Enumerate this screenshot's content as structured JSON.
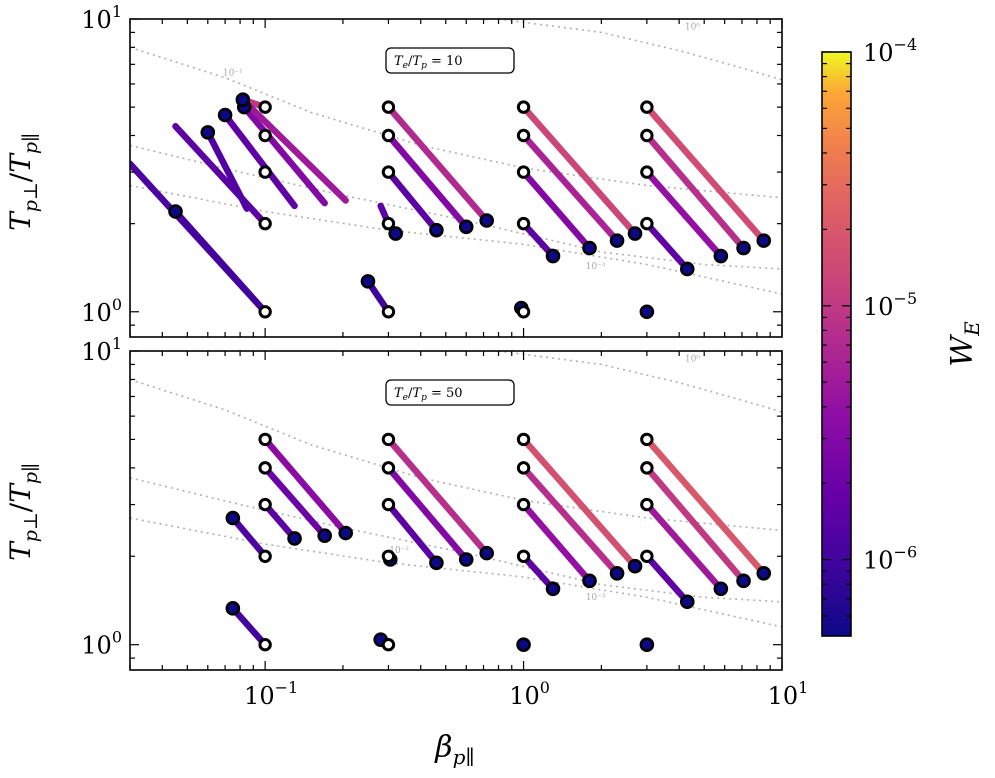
{
  "figure": {
    "xlabel_main": "β",
    "xlabel_sub": "p∥",
    "ylabel_main": "T",
    "ylabel_sub1": "p⊥",
    "ylabel_sep": "/",
    "ylabel_sub2": "p∥",
    "colorbar_label_main": "W",
    "colorbar_label_sub": "E"
  },
  "colors": {
    "low": "#0d0887",
    "mid": "#9c179e",
    "high": "#ed7953",
    "top": "#f0f921",
    "contour": "#b0b0b0"
  },
  "chart_data": {
    "type": "scatter",
    "x_scale": "log",
    "y_scale": "log",
    "xlim": [
      0.03,
      10
    ],
    "ylim": [
      0.82,
      10
    ],
    "x_ticks": [
      {
        "value": 0.1,
        "base": "10",
        "exp": "−1"
      },
      {
        "value": 1,
        "base": "10",
        "exp": "0"
      },
      {
        "value": 10,
        "base": "10",
        "exp": "1"
      }
    ],
    "y_ticks": [
      {
        "value": 1,
        "base": "10",
        "exp": "0"
      },
      {
        "value": 10,
        "base": "10",
        "exp": "1"
      }
    ],
    "colorbar": {
      "scale": "log",
      "range": [
        5e-07,
        0.0001
      ],
      "ticks": [
        {
          "value": 0.0001,
          "base": "10",
          "exp": "−4"
        },
        {
          "value": 1e-05,
          "base": "10",
          "exp": "−5"
        },
        {
          "value": 1e-06,
          "base": "10",
          "exp": "−6"
        }
      ]
    },
    "panels": [
      {
        "name": "Te/Tp = 10",
        "label_main": "T",
        "label_sub1": "e",
        "label_sep": "/",
        "label_main2": "T",
        "label_sub2": "p",
        "label_value": " = 10",
        "contours": [
          {
            "label": "10⁰",
            "points": [
              [
                0.8,
                10
              ],
              [
                2,
                9
              ],
              [
                4,
                7.8
              ],
              [
                7,
                6.8
              ],
              [
                10,
                6.2
              ]
            ],
            "label_at": [
              4.5,
              9.2
            ]
          },
          {
            "label": "10⁻¹",
            "points": [
              [
                0.03,
                8
              ],
              [
                0.07,
                6.3
              ],
              [
                0.15,
                4.8
              ],
              [
                0.4,
                3.7
              ],
              [
                1,
                3.1
              ],
              [
                3,
                2.7
              ],
              [
                10,
                2.45
              ]
            ],
            "label_at": [
              0.075,
              6.4
            ]
          },
          {
            "label": "10⁻³",
            "points": [
              [
                0.03,
                3.7
              ],
              [
                0.08,
                3
              ],
              [
                0.2,
                2.5
              ],
              [
                0.6,
                2.05
              ],
              [
                2,
                1.6
              ],
              [
                5,
                1.45
              ],
              [
                10,
                1.4
              ]
            ],
            "label_at": [
              1.9,
              1.4
            ]
          },
          {
            "label": "",
            "points": [
              [
                0.03,
                2.7
              ],
              [
                0.1,
                2.2
              ],
              [
                0.3,
                1.9
              ],
              [
                1,
                1.7
              ],
              [
                3,
                1.45
              ],
              [
                10,
                1.15
              ]
            ],
            "label_at": null
          }
        ],
        "trajectories": [
          {
            "x0": 0.1,
            "y0": 1.0,
            "x1": 0.03,
            "y1": 3.2,
            "w": 1.2e-06,
            "ws": 3e-06,
            "end_marker": false
          },
          {
            "x0": 0.1,
            "y0": 2.0,
            "x1": 0.045,
            "y1": 4.3,
            "w": 1.5e-06,
            "end_marker": false
          },
          {
            "x0": 0.1,
            "y0": 5.0,
            "x1": 0.082,
            "y1": 5.3,
            "w": 1e-05,
            "end_marker": false
          },
          {
            "x0": 0.1,
            "y0": 1.0,
            "x1": 0.045,
            "y1": 2.2,
            "w": 1e-06,
            "end_marker": true,
            "show_start": false
          },
          {
            "x0": 0.085,
            "y0": 2.25,
            "x1": 0.06,
            "y1": 4.1,
            "w": 1.3e-06,
            "end_marker": true,
            "reverse": true
          },
          {
            "x0": 0.13,
            "y0": 2.3,
            "x1": 0.07,
            "y1": 4.7,
            "w": 1.6e-06,
            "end_marker": true,
            "reverse": true
          },
          {
            "x0": 0.17,
            "y0": 2.35,
            "x1": 0.083,
            "y1": 5.0,
            "w": 3e-06,
            "end_marker": true,
            "reverse": true
          },
          {
            "x0": 0.205,
            "y0": 2.4,
            "x1": 0.082,
            "y1": 5.3,
            "w": 5e-06,
            "end_marker": true,
            "reverse": true
          },
          {
            "x0": 0.1,
            "y0": 4.0,
            "x1": 0.1,
            "y1": 4.0,
            "w": 1e-06,
            "end_marker": false
          },
          {
            "x0": 0.1,
            "y0": 3.0,
            "x1": 0.1,
            "y1": 3.0,
            "w": 1e-06,
            "end_marker": false
          },
          {
            "x0": 0.3,
            "y0": 1.0,
            "x1": 0.25,
            "y1": 1.27,
            "w": 1e-06,
            "end_marker": true
          },
          {
            "x0": 0.3,
            "y0": 2.0,
            "x1": 0.32,
            "y1": 1.85,
            "w": 1.2e-06,
            "end_marker": true
          },
          {
            "x0": 0.3,
            "y0": 2.0,
            "x1": 0.28,
            "y1": 2.3,
            "w": 1.5e-06,
            "end_marker": false,
            "show_start": false
          },
          {
            "x0": 0.3,
            "y0": 3.0,
            "x1": 0.46,
            "y1": 1.9,
            "w": 1.5e-06,
            "end_marker": true
          },
          {
            "x0": 0.3,
            "y0": 4.0,
            "x1": 0.6,
            "y1": 1.95,
            "w": 3e-06,
            "end_marker": true
          },
          {
            "x0": 0.3,
            "y0": 5.0,
            "x1": 0.72,
            "y1": 2.05,
            "w": 7e-06,
            "end_marker": true
          },
          {
            "x0": 1.0,
            "y0": 1.0,
            "x1": 0.98,
            "y1": 1.03,
            "w": 1e-06,
            "end_marker": true
          },
          {
            "x0": 1.0,
            "y0": 2.0,
            "x1": 1.3,
            "y1": 1.55,
            "w": 1.5e-06,
            "end_marker": true
          },
          {
            "x0": 1.0,
            "y0": 3.0,
            "x1": 1.8,
            "y1": 1.65,
            "w": 3e-06,
            "end_marker": true
          },
          {
            "x0": 1.0,
            "y0": 4.0,
            "x1": 2.3,
            "y1": 1.75,
            "w": 6e-06,
            "end_marker": true
          },
          {
            "x0": 1.0,
            "y0": 5.0,
            "x1": 2.7,
            "y1": 1.85,
            "w": 1.3e-05,
            "end_marker": true
          },
          {
            "x0": 3.0,
            "y0": 1.0,
            "x1": 3.0,
            "y1": 1.0,
            "w": 1e-06,
            "end_marker": true,
            "show_start": false
          },
          {
            "x0": 3.0,
            "y0": 2.0,
            "x1": 4.3,
            "y1": 1.4,
            "w": 1.6e-06,
            "end_marker": true
          },
          {
            "x0": 3.0,
            "y0": 3.0,
            "x1": 5.8,
            "y1": 1.55,
            "w": 4e-06,
            "end_marker": true
          },
          {
            "x0": 3.0,
            "y0": 4.0,
            "x1": 7.1,
            "y1": 1.65,
            "w": 8e-06,
            "end_marker": true
          },
          {
            "x0": 3.0,
            "y0": 5.0,
            "x1": 8.5,
            "y1": 1.75,
            "w": 1.5e-05,
            "end_marker": true
          }
        ]
      },
      {
        "name": "Te/Tp = 50",
        "label_main": "T",
        "label_sub1": "e",
        "label_sep": "/",
        "label_main2": "T",
        "label_sub2": "p",
        "label_value": " = 50",
        "contours": [
          {
            "label": "10⁰",
            "points": [
              [
                0.8,
                10
              ],
              [
                2,
                9
              ],
              [
                4,
                7.8
              ],
              [
                7,
                6.8
              ],
              [
                10,
                6.2
              ]
            ],
            "label_at": [
              4.5,
              9.2
            ]
          },
          {
            "label": "",
            "points": [
              [
                0.03,
                8
              ],
              [
                0.07,
                6.3
              ],
              [
                0.15,
                4.8
              ],
              [
                0.4,
                3.7
              ],
              [
                1,
                3.1
              ],
              [
                3,
                2.7
              ],
              [
                10,
                2.45
              ]
            ],
            "label_at": null
          },
          {
            "label": "10⁻²",
            "points": [
              [
                0.03,
                3.7
              ],
              [
                0.08,
                3
              ],
              [
                0.2,
                2.5
              ],
              [
                0.6,
                2.05
              ],
              [
                2,
                1.6
              ],
              [
                5,
                1.45
              ],
              [
                10,
                1.4
              ]
            ],
            "label_at": [
              0.33,
              2.05
            ]
          },
          {
            "label": "10⁻³",
            "points": [
              [
                0.03,
                2.7
              ],
              [
                0.1,
                2.2
              ],
              [
                0.3,
                1.9
              ],
              [
                1,
                1.7
              ],
              [
                3,
                1.45
              ],
              [
                10,
                1.15
              ]
            ],
            "label_at": [
              1.9,
              1.42
            ]
          }
        ],
        "trajectories": [
          {
            "x0": 0.1,
            "y0": 1.0,
            "x1": 0.075,
            "y1": 1.33,
            "w": 1e-06,
            "end_marker": true
          },
          {
            "x0": 0.1,
            "y0": 2.0,
            "x1": 0.075,
            "y1": 2.7,
            "w": 1.2e-06,
            "end_marker": true
          },
          {
            "x0": 0.1,
            "y0": 3.0,
            "x1": 0.13,
            "y1": 2.3,
            "w": 1.5e-06,
            "end_marker": true
          },
          {
            "x0": 0.1,
            "y0": 4.0,
            "x1": 0.17,
            "y1": 2.35,
            "w": 2e-06,
            "end_marker": true
          },
          {
            "x0": 0.1,
            "y0": 5.0,
            "x1": 0.205,
            "y1": 2.4,
            "w": 3.5e-06,
            "end_marker": true
          },
          {
            "x0": 0.3,
            "y0": 1.0,
            "x1": 0.28,
            "y1": 1.04,
            "w": 1e-06,
            "end_marker": true
          },
          {
            "x0": 0.3,
            "y0": 2.0,
            "x1": 0.305,
            "y1": 1.95,
            "w": 1e-06,
            "end_marker": true
          },
          {
            "x0": 0.3,
            "y0": 3.0,
            "x1": 0.46,
            "y1": 1.9,
            "w": 1.5e-06,
            "end_marker": true
          },
          {
            "x0": 0.3,
            "y0": 4.0,
            "x1": 0.6,
            "y1": 1.95,
            "w": 3e-06,
            "end_marker": true
          },
          {
            "x0": 0.3,
            "y0": 5.0,
            "x1": 0.72,
            "y1": 2.05,
            "w": 8e-06,
            "end_marker": true
          },
          {
            "x0": 1.0,
            "y0": 1.0,
            "x1": 1.0,
            "y1": 1.0,
            "w": 1e-06,
            "end_marker": true,
            "show_start": false
          },
          {
            "x0": 1.0,
            "y0": 2.0,
            "x1": 1.3,
            "y1": 1.55,
            "w": 1.5e-06,
            "end_marker": true
          },
          {
            "x0": 1.0,
            "y0": 3.0,
            "x1": 1.8,
            "y1": 1.65,
            "w": 4e-06,
            "end_marker": true
          },
          {
            "x0": 1.0,
            "y0": 4.0,
            "x1": 2.3,
            "y1": 1.75,
            "w": 8e-06,
            "end_marker": true
          },
          {
            "x0": 1.0,
            "y0": 5.0,
            "x1": 2.7,
            "y1": 1.85,
            "w": 1.7e-05,
            "end_marker": true
          },
          {
            "x0": 3.0,
            "y0": 1.0,
            "x1": 3.0,
            "y1": 1.0,
            "w": 1e-06,
            "end_marker": true,
            "show_start": false
          },
          {
            "x0": 3.0,
            "y0": 2.0,
            "x1": 4.3,
            "y1": 1.4,
            "w": 1.6e-06,
            "end_marker": true
          },
          {
            "x0": 3.0,
            "y0": 3.0,
            "x1": 5.8,
            "y1": 1.55,
            "w": 5e-06,
            "end_marker": true
          },
          {
            "x0": 3.0,
            "y0": 4.0,
            "x1": 7.1,
            "y1": 1.65,
            "w": 1e-05,
            "end_marker": true
          },
          {
            "x0": 3.0,
            "y0": 5.0,
            "x1": 8.5,
            "y1": 1.75,
            "w": 2e-05,
            "end_marker": true
          }
        ]
      }
    ]
  }
}
